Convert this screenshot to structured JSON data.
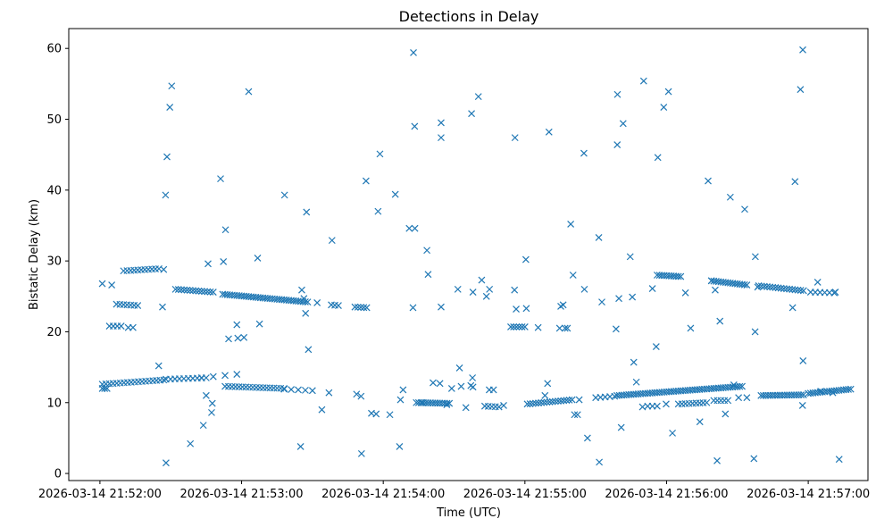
{
  "chart_data": {
    "type": "scatter",
    "title": "Detections in Delay",
    "xlabel": "Time (UTC)",
    "ylabel": "Bistatic Delay (km)",
    "x_unit": "seconds since 2026-03-14 21:52:00",
    "xlim": [
      -13.2,
      325.3
    ],
    "ylim": [
      -1.0,
      62.8
    ],
    "x_ticks": [
      {
        "value": 0,
        "label": "2026-03-14 21:52:00"
      },
      {
        "value": 60,
        "label": "2026-03-14 21:53:00"
      },
      {
        "value": 120,
        "label": "2026-03-14 21:54:00"
      },
      {
        "value": 180,
        "label": "2026-03-14 21:55:00"
      },
      {
        "value": 240,
        "label": "2026-03-14 21:56:00"
      },
      {
        "value": 300,
        "label": "2026-03-14 21:57:00"
      }
    ],
    "y_ticks": [
      0,
      10,
      20,
      30,
      40,
      50,
      60
    ],
    "marker": "x",
    "color": "#1f77b4",
    "tracks": [
      {
        "x0": 1,
        "x1": 27,
        "y0": 12.6,
        "y1": 13.2,
        "step": 1.5
      },
      {
        "x0": 28,
        "x1": 45,
        "y0": 13.3,
        "y1": 13.5,
        "step": 2
      },
      {
        "x0": 43,
        "x1": 58,
        "y0": 13.5,
        "y1": 14.0,
        "step": 5
      },
      {
        "x0": 53,
        "x1": 78,
        "y0": 12.3,
        "y1": 12.0,
        "step": 1.5
      },
      {
        "x0": 78,
        "x1": 90,
        "y0": 11.9,
        "y1": 11.7,
        "step": 3
      },
      {
        "x0": 115,
        "x1": 117,
        "y0": 8.5,
        "y1": 8.4,
        "step": 2
      },
      {
        "x0": 134,
        "x1": 148,
        "y0": 10.0,
        "y1": 9.9,
        "step": 1
      },
      {
        "x0": 163,
        "x1": 169,
        "y0": 9.5,
        "y1": 9.4,
        "step": 1.5
      },
      {
        "x0": 181,
        "x1": 200,
        "y0": 9.8,
        "y1": 10.4,
        "step": 1.2
      },
      {
        "x0": 210,
        "x1": 218,
        "y0": 10.7,
        "y1": 10.9,
        "step": 2
      },
      {
        "x0": 219,
        "x1": 272,
        "y0": 11.0,
        "y1": 12.3,
        "step": 1
      },
      {
        "x0": 232,
        "x1": 236,
        "y0": 9.5,
        "y1": 9.5,
        "step": 2
      },
      {
        "x0": 245,
        "x1": 257,
        "y0": 9.8,
        "y1": 10.0,
        "step": 1.5
      },
      {
        "x0": 260,
        "x1": 266,
        "y0": 10.3,
        "y1": 10.3,
        "step": 1.5
      },
      {
        "x0": 280,
        "x1": 298,
        "y0": 11.0,
        "y1": 11.1,
        "step": 1
      },
      {
        "x0": 300,
        "x1": 318,
        "y0": 11.3,
        "y1": 11.9,
        "step": 1
      },
      {
        "x0": 1,
        "x1": 3,
        "y0": 12.0,
        "y1": 12.0,
        "step": 1
      },
      {
        "x0": 1,
        "x1": 5,
        "y0": 26.8,
        "y1": 26.6,
        "step": 3
      },
      {
        "x0": 4,
        "x1": 9,
        "y0": 20.8,
        "y1": 20.8,
        "step": 2
      },
      {
        "x0": 7,
        "x1": 16,
        "y0": 23.9,
        "y1": 23.7,
        "step": 1.5
      },
      {
        "x0": 10,
        "x1": 25,
        "y0": 28.6,
        "y1": 28.9,
        "step": 1.5
      },
      {
        "x0": 12,
        "x1": 14,
        "y0": 20.6,
        "y1": 20.6,
        "step": 2
      },
      {
        "x0": 32,
        "x1": 48,
        "y0": 26.0,
        "y1": 25.6,
        "step": 1.2
      },
      {
        "x0": 52,
        "x1": 88,
        "y0": 25.3,
        "y1": 24.2,
        "step": 1
      },
      {
        "x0": 98,
        "x1": 101,
        "y0": 23.8,
        "y1": 23.7,
        "step": 1.5
      },
      {
        "x0": 108,
        "x1": 113,
        "y0": 23.5,
        "y1": 23.4,
        "step": 1.2
      },
      {
        "x0": 174,
        "x1": 180,
        "y0": 20.7,
        "y1": 20.7,
        "step": 1.2
      },
      {
        "x0": 197,
        "x1": 198,
        "y0": 20.5,
        "y1": 20.5,
        "step": 1
      },
      {
        "x0": 236,
        "x1": 246,
        "y0": 28.0,
        "y1": 27.8,
        "step": 1
      },
      {
        "x0": 259,
        "x1": 274,
        "y0": 27.2,
        "y1": 26.6,
        "step": 1
      },
      {
        "x0": 279,
        "x1": 298,
        "y0": 26.5,
        "y1": 25.8,
        "step": 1.2
      },
      {
        "x0": 301,
        "x1": 311,
        "y0": 25.6,
        "y1": 25.5,
        "step": 2
      }
    ],
    "points": [
      [
        28,
        1.5
      ],
      [
        27.8,
        39.3
      ],
      [
        28.4,
        44.7
      ],
      [
        29.6,
        51.7
      ],
      [
        30.4,
        54.7
      ],
      [
        27,
        28.8
      ],
      [
        26.5,
        23.5
      ],
      [
        24.9,
        15.2
      ],
      [
        38.3,
        4.2
      ],
      [
        43.8,
        6.8
      ],
      [
        45,
        11
      ],
      [
        45.8,
        29.6
      ],
      [
        47.6,
        9.9
      ],
      [
        47.3,
        8.6
      ],
      [
        51.1,
        41.6
      ],
      [
        52.3,
        29.9
      ],
      [
        53.2,
        34.4
      ],
      [
        54.5,
        19
      ],
      [
        58,
        21
      ],
      [
        58.4,
        19.1
      ],
      [
        61,
        19.2
      ],
      [
        63,
        53.9
      ],
      [
        66.8,
        30.4
      ],
      [
        67.6,
        21.1
      ],
      [
        78.2,
        39.3
      ],
      [
        85.5,
        25.9
      ],
      [
        86.4,
        24.7
      ],
      [
        87.5,
        36.9
      ],
      [
        87.1,
        22.6
      ],
      [
        88.3,
        17.5
      ],
      [
        85,
        3.8
      ],
      [
        94,
        9
      ],
      [
        92,
        24.1
      ],
      [
        97,
        11.4
      ],
      [
        98.3,
        32.9
      ],
      [
        108.7,
        11.2
      ],
      [
        110.6,
        10.9
      ],
      [
        110.8,
        2.8
      ],
      [
        112.7,
        41.3
      ],
      [
        117.8,
        37
      ],
      [
        118.6,
        45.1
      ],
      [
        125.1,
        39.4
      ],
      [
        122.8,
        8.3
      ],
      [
        126.9,
        3.8
      ],
      [
        127.3,
        10.4
      ],
      [
        128.4,
        11.8
      ],
      [
        131,
        34.6
      ],
      [
        132.6,
        23.4
      ],
      [
        132.8,
        59.4
      ],
      [
        133.3,
        49
      ],
      [
        133.4,
        34.6
      ],
      [
        136.4,
        10
      ],
      [
        138.5,
        31.5
      ],
      [
        139,
        28.1
      ],
      [
        141.1,
        12.8
      ],
      [
        144,
        12.7
      ],
      [
        144.5,
        23.5
      ],
      [
        144.5,
        49.5
      ],
      [
        144.5,
        47.4
      ],
      [
        146.9,
        9.7
      ],
      [
        149,
        12
      ],
      [
        151.6,
        26
      ],
      [
        152.3,
        14.9
      ],
      [
        153,
        12.3
      ],
      [
        155,
        9.3
      ],
      [
        157.1,
        12.4
      ],
      [
        158,
        25.6
      ],
      [
        157.8,
        13.5
      ],
      [
        158,
        12.2
      ],
      [
        157.4,
        50.8
      ],
      [
        160.3,
        53.2
      ],
      [
        161.7,
        27.3
      ],
      [
        163.7,
        25
      ],
      [
        165,
        26
      ],
      [
        164.9,
        11.8
      ],
      [
        166.7,
        11.8
      ],
      [
        171,
        9.6
      ],
      [
        175.6,
        25.9
      ],
      [
        175.8,
        47.4
      ],
      [
        176.3,
        23.2
      ],
      [
        180.4,
        30.2
      ],
      [
        180.6,
        23.3
      ],
      [
        185.6,
        20.6
      ],
      [
        188.5,
        11
      ],
      [
        189.6,
        12.7
      ],
      [
        190.2,
        48.2
      ],
      [
        194.7,
        20.5
      ],
      [
        195.2,
        23.6
      ],
      [
        196.2,
        23.8
      ],
      [
        199.4,
        35.2
      ],
      [
        200.4,
        28
      ],
      [
        201,
        8.3
      ],
      [
        202.3,
        8.3
      ],
      [
        203,
        10.4
      ],
      [
        205,
        45.2
      ],
      [
        205.2,
        26
      ],
      [
        206.5,
        5
      ],
      [
        211.3,
        33.3
      ],
      [
        212.6,
        24.2
      ],
      [
        211.5,
        1.6
      ],
      [
        218.6,
        20.4
      ],
      [
        219.2,
        53.5
      ],
      [
        219.1,
        46.4
      ],
      [
        219.8,
        24.7
      ],
      [
        220.8,
        6.5
      ],
      [
        221.6,
        49.4
      ],
      [
        224.6,
        30.6
      ],
      [
        225.5,
        24.9
      ],
      [
        226.1,
        15.7
      ],
      [
        227.2,
        12.9
      ],
      [
        229.8,
        9.4
      ],
      [
        234,
        26.1
      ],
      [
        235.6,
        17.9
      ],
      [
        236.3,
        44.6
      ],
      [
        230.3,
        55.4
      ],
      [
        238.8,
        51.7
      ],
      [
        240.8,
        53.9
      ],
      [
        239.8,
        9.8
      ],
      [
        242.5,
        5.7
      ],
      [
        248,
        25.5
      ],
      [
        250.2,
        20.5
      ],
      [
        254.1,
        7.3
      ],
      [
        257.6,
        41.3
      ],
      [
        259,
        27.2
      ],
      [
        260.6,
        25.9
      ],
      [
        261.4,
        1.8
      ],
      [
        262.6,
        21.5
      ],
      [
        264.9,
        8.4
      ],
      [
        267,
        39
      ],
      [
        268.5,
        12.5
      ],
      [
        273.1,
        37.3
      ],
      [
        270.5,
        10.7
      ],
      [
        274,
        10.7
      ],
      [
        277.6,
        30.6
      ],
      [
        277,
        2.1
      ],
      [
        277.5,
        20
      ],
      [
        278.6,
        26.3
      ],
      [
        294.4,
        41.2
      ],
      [
        293.4,
        23.4
      ],
      [
        296.7,
        54.2
      ],
      [
        297.7,
        59.8
      ],
      [
        297.8,
        15.9
      ],
      [
        297.6,
        9.6
      ],
      [
        304,
        27
      ],
      [
        313.1,
        2
      ],
      [
        305.3,
        11.6
      ],
      [
        310.4,
        11.4
      ],
      [
        311.5,
        25.6
      ]
    ]
  }
}
